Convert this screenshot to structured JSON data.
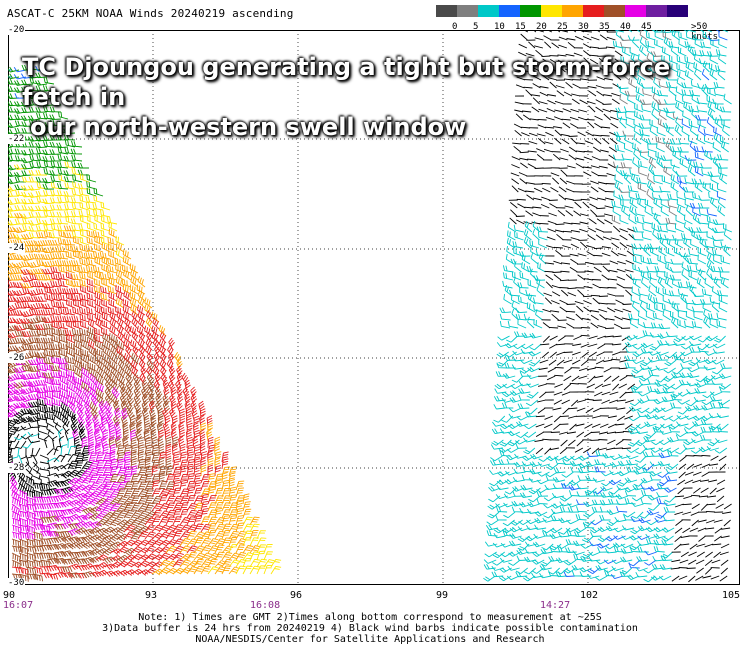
{
  "header": {
    "title": "ASCAT-C 25KM NOAA Winds 20240219 ascending"
  },
  "overlay": {
    "line1": "TC Djoungou generating a tight but storm-force fetch in",
    "line2": "our north-western swell window"
  },
  "legend": {
    "unit_label": ">50 knots",
    "swatches": [
      {
        "color": "#4a4a4a",
        "label": "0"
      },
      {
        "color": "#7f7f7f",
        "label": "5"
      },
      {
        "color": "#00c8c8",
        "label": "10"
      },
      {
        "color": "#1464ff",
        "label": "15"
      },
      {
        "color": "#009600",
        "label": "20"
      },
      {
        "color": "#ffe600",
        "label": "25"
      },
      {
        "color": "#ffa500",
        "label": "30"
      },
      {
        "color": "#e61e1e",
        "label": "35"
      },
      {
        "color": "#a05028",
        "label": "40"
      },
      {
        "color": "#e600e6",
        "label": "45"
      },
      {
        "color": "#6e1ea0",
        "label": ""
      },
      {
        "color": "#280078",
        "label": ""
      }
    ]
  },
  "axes": {
    "lat_labels": [
      "-20",
      "-22",
      "-24",
      "-26",
      "-28",
      "-30"
    ],
    "lon_labels": [
      "90",
      "93",
      "96",
      "99",
      "102",
      "105"
    ],
    "times": [
      "16:07",
      "16:08",
      "14:27"
    ]
  },
  "footnote": {
    "line1": "Note: 1) Times are GMT 2)Times along bottom correspond to measurement at ~25S",
    "line2": "3)Data buffer is 24 hrs from 20240219 4) Black wind barbs indicate possible contamination",
    "line3": "NOAA/NESDIS/Center for Satellite Applications and Research"
  }
}
